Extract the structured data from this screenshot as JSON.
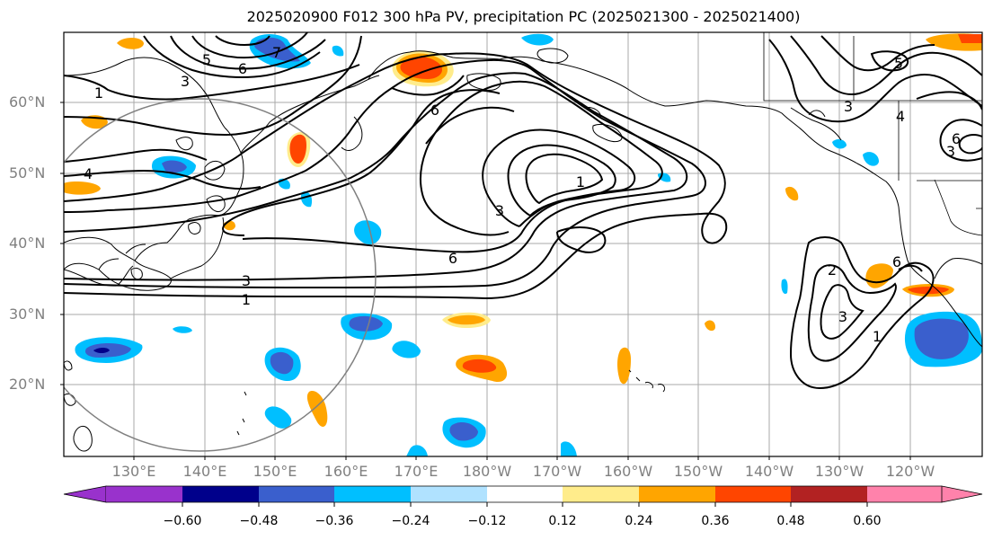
{
  "title": "2025020900 F012 300 hPa PV, precipitation PC (2025021300 - 2025021400)",
  "lat_labels": [
    "60°N",
    "50°N",
    "40°N",
    "30°N",
    "20°N"
  ],
  "lon_labels": [
    "130°E",
    "140°E",
    "150°E",
    "160°E",
    "170°E",
    "180°W",
    "170°W",
    "160°W",
    "150°W",
    "140°W",
    "130°W",
    "120°W"
  ],
  "contour_labels": [
    "1",
    "3",
    "5",
    "6",
    "7",
    "4",
    "3",
    "1",
    "6",
    "3",
    "1",
    "6",
    "3",
    "4",
    "3",
    "5",
    "6",
    "1",
    "2",
    "3",
    "6"
  ],
  "colorbar": {
    "tick_labels": [
      "−0.60",
      "−0.48",
      "−0.36",
      "−0.24",
      "−0.12",
      "0.12",
      "0.24",
      "0.36",
      "0.48",
      "0.60"
    ],
    "colors": [
      "#9932cc",
      "#00008b",
      "#3a5fcd",
      "#00bfff",
      "#b0e2ff",
      "#ffffff",
      "#ffec8b",
      "#ffa500",
      "#ff4500",
      "#b22222",
      "#ff82ab"
    ]
  }
}
